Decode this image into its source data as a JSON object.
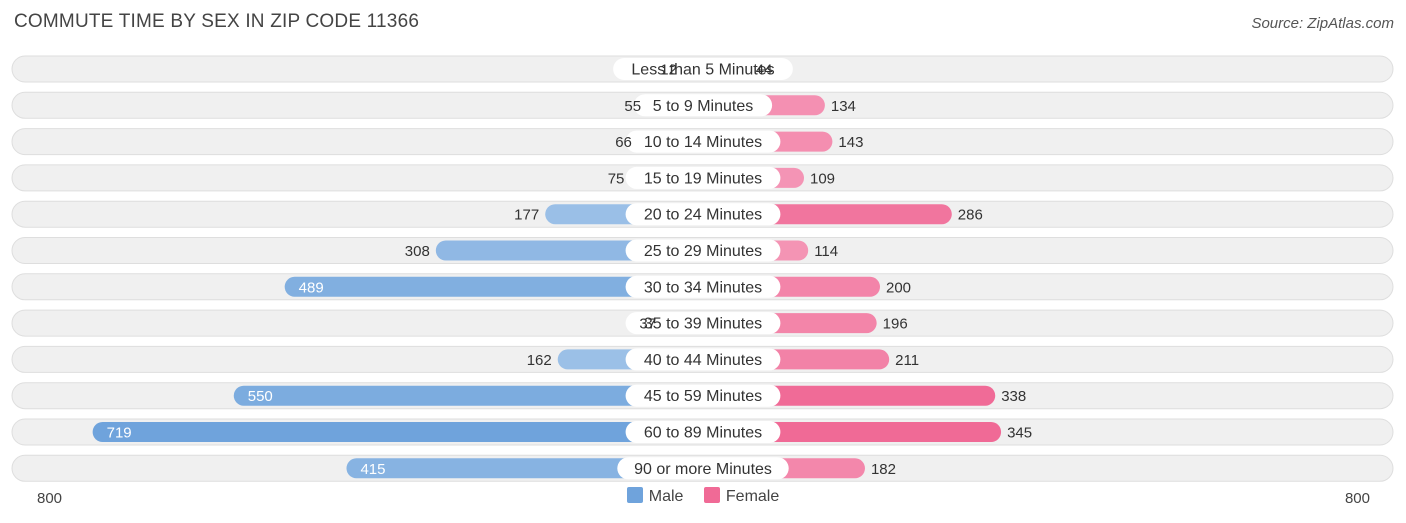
{
  "header": {
    "title": "COMMUTE TIME BY SEX IN ZIP CODE 11366",
    "source": "Source: ZipAtlas.com"
  },
  "legend": {
    "male_label": "Male",
    "female_label": "Female"
  },
  "axis": {
    "left_label": "800",
    "right_label": "800"
  },
  "colors": {
    "male_light": "#a8c8ea",
    "male_dark": "#6fa3dc",
    "female_light": "#f6a8c3",
    "female_dark": "#f06a96",
    "row_bg": "#f0f0f0",
    "row_border": "#dedede",
    "legend_male": "#6fa3dc",
    "legend_female": "#f06a96"
  },
  "chart_data": {
    "type": "bar",
    "orientation": "horizontal-diverging",
    "title": "COMMUTE TIME BY SEX IN ZIP CODE 11366",
    "xlim": [
      -800,
      800
    ],
    "categories": [
      "Less than 5 Minutes",
      "5 to 9 Minutes",
      "10 to 14 Minutes",
      "15 to 19 Minutes",
      "20 to 24 Minutes",
      "25 to 29 Minutes",
      "30 to 34 Minutes",
      "35 to 39 Minutes",
      "40 to 44 Minutes",
      "45 to 59 Minutes",
      "60 to 89 Minutes",
      "90 or more Minutes"
    ],
    "series": [
      {
        "name": "Male",
        "values": [
          12,
          55,
          66,
          75,
          177,
          308,
          489,
          37,
          162,
          550,
          719,
          415
        ]
      },
      {
        "name": "Female",
        "values": [
          44,
          134,
          143,
          109,
          286,
          114,
          200,
          196,
          211,
          338,
          345,
          182
        ]
      }
    ],
    "legend_position": "bottom-center"
  }
}
